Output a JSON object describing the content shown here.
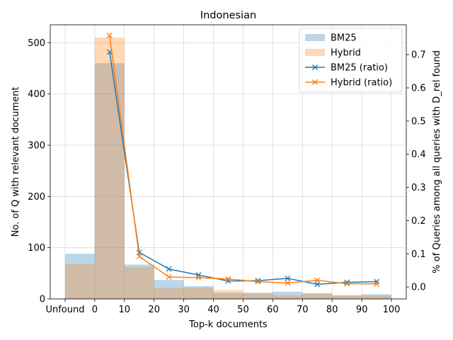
{
  "chart_data": {
    "type": "bar",
    "title": "Indonesian",
    "xlabel": "Top-k documents",
    "ylabel": "No. of Q with relevant document",
    "ylabel_right": "% of Queries among all queries with D_rel found",
    "x_ticks": [
      "Unfound",
      "0",
      "10",
      "20",
      "30",
      "40",
      "50",
      "60",
      "70",
      "80",
      "90",
      "100"
    ],
    "bin_edges": [
      -10,
      0,
      10,
      20,
      30,
      40,
      50,
      60,
      70,
      80,
      90,
      100
    ],
    "ylim": [
      0,
      535
    ],
    "y_ticks": [
      0,
      100,
      200,
      300,
      400,
      500
    ],
    "ylim_right": [
      -0.036,
      0.79
    ],
    "y_ticks_right": [
      "0.0",
      "0.1",
      "0.2",
      "0.3",
      "0.4",
      "0.5",
      "0.6",
      "0.7"
    ],
    "grid": true,
    "legend_position": "upper right",
    "series": [
      {
        "name": "BM25",
        "kind": "bar",
        "color": "#1f77b4",
        "values": [
          88,
          460,
          67,
          37,
          25,
          12,
          12,
          14,
          11,
          7,
          9
        ]
      },
      {
        "name": "Hybrid",
        "kind": "bar",
        "color": "#ff7f0e",
        "values": [
          68,
          510,
          62,
          21,
          22,
          17,
          11,
          7,
          10,
          7,
          7
        ]
      },
      {
        "name": "BM25 (ratio)",
        "kind": "line",
        "marker": "x",
        "color": "#1f77b4",
        "x": [
          5,
          15,
          25,
          35,
          45,
          55,
          65,
          75,
          85,
          95
        ],
        "values": [
          0.708,
          0.104,
          0.054,
          0.036,
          0.018,
          0.019,
          0.026,
          0.008,
          0.014,
          0.016
        ]
      },
      {
        "name": "Hybrid (ratio)",
        "kind": "line",
        "marker": "x",
        "color": "#ff7f0e",
        "x": [
          5,
          15,
          25,
          35,
          45,
          55,
          65,
          75,
          85,
          95
        ],
        "values": [
          0.758,
          0.092,
          0.03,
          0.028,
          0.024,
          0.016,
          0.012,
          0.02,
          0.01,
          0.009
        ]
      }
    ]
  }
}
